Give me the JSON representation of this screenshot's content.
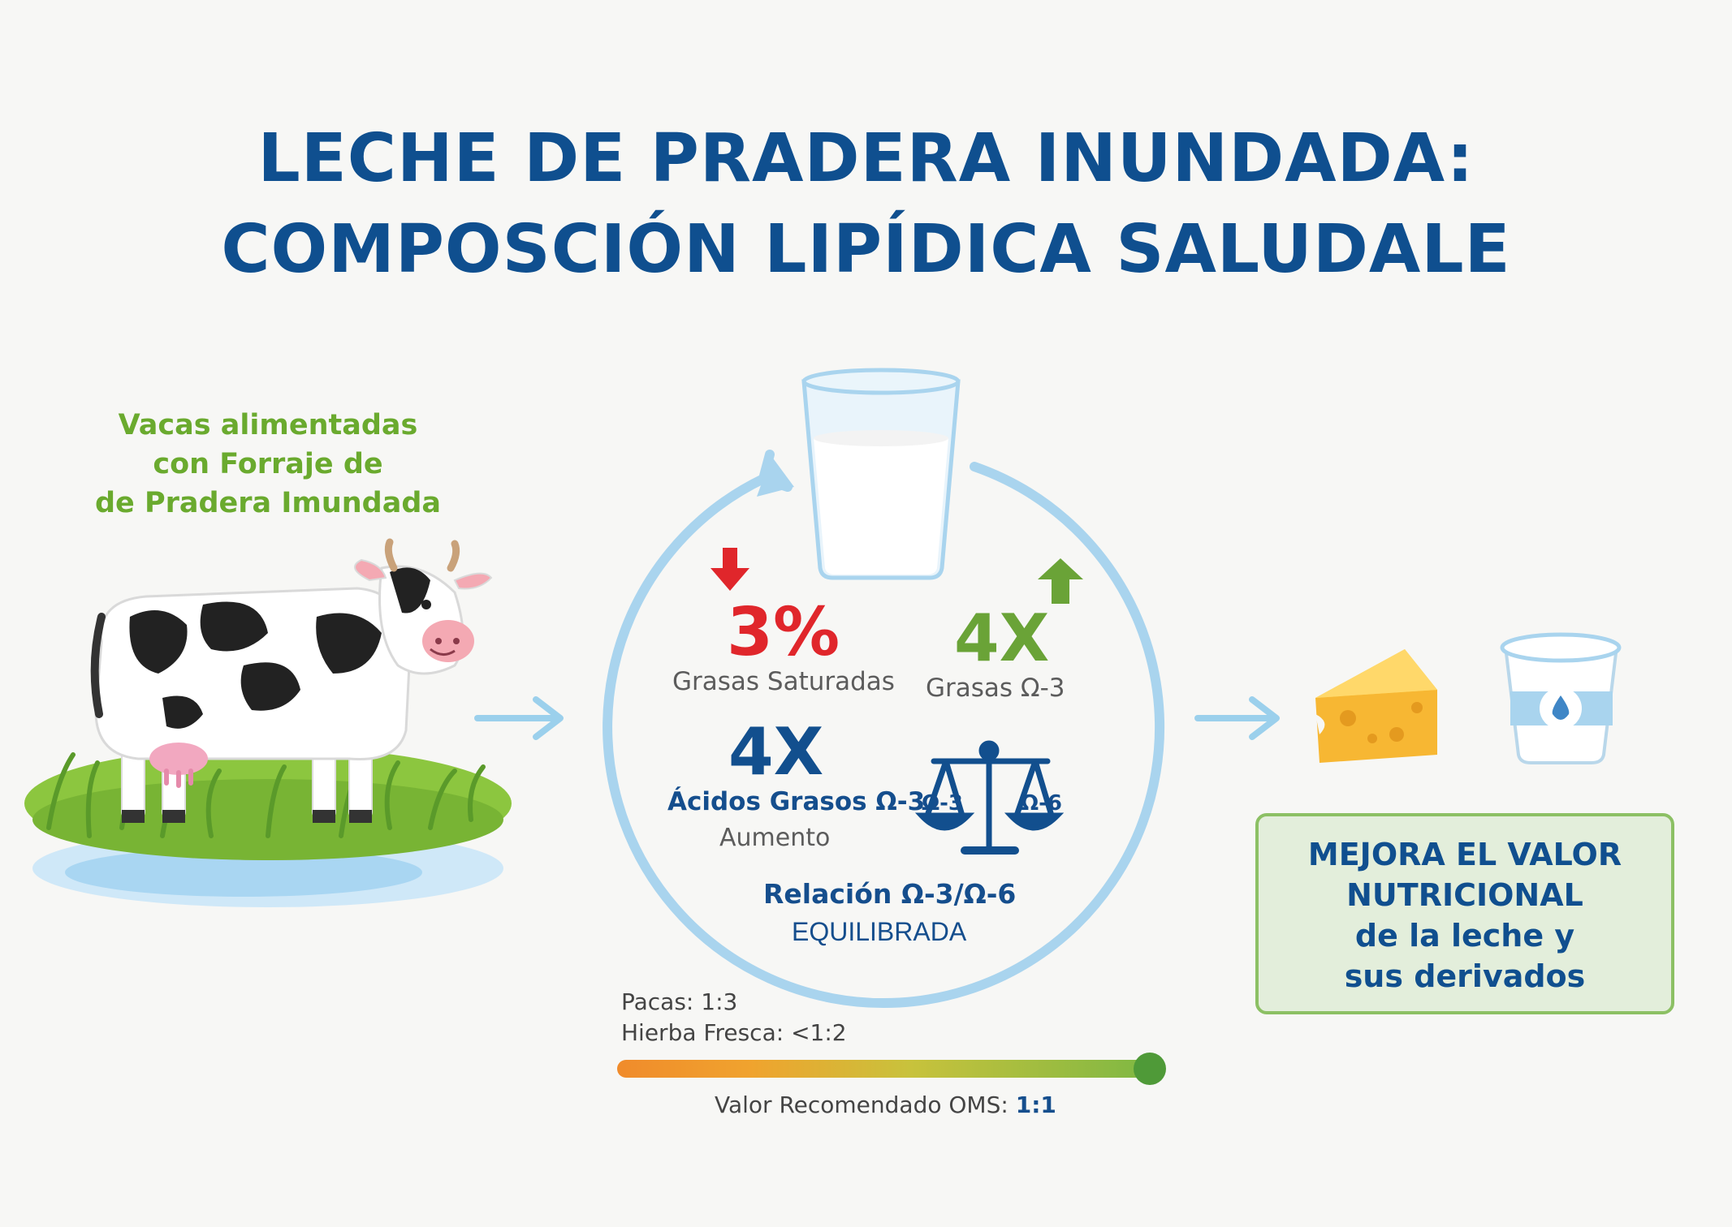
{
  "title": {
    "line1": "LECHE DE PRADERA INUNDADA:",
    "line2": "COMPOSCIÓN LIPÍDICA SALUDALE"
  },
  "cow_caption": {
    "line1": "Vacas alimentadas",
    "line2": "con Forraje de",
    "line3": "de Pradera Imundada"
  },
  "cycle": {
    "saturated_value": "3%",
    "saturated_label": "Grasas Saturadas",
    "omega3_fat_value": "4X",
    "omega3_fat_label": "Grasas Ω-3",
    "omega3_acid_value": "4X",
    "omega3_acid_label": "Ácidos Grasos Ω-3",
    "omega3_acid_sub": "Aumento",
    "scale_left": "Ω-3",
    "scale_right": "Ω-6",
    "ratio_label": "Relación Ω-3/Ω-6",
    "ratio_status": "EQUILIBRADA"
  },
  "ratio_scale": {
    "pacas": "Pacas: 1:3",
    "hierba": "Hierba Fresca: <1:2",
    "oms_label": "Valor Recomendado OMS:",
    "oms_value": "1:1",
    "level": 1.0
  },
  "benefit": {
    "line1": "MEJORA EL VALOR",
    "line2": "NUTRICIONAL",
    "line3": "de la leche y",
    "line4": "sus derivados"
  },
  "colors": {
    "title_blue": "#0f4f8f",
    "accent_green": "#6aaa2e",
    "down_red": "#e0262b",
    "cycle_ring": "#a9d4ee"
  }
}
